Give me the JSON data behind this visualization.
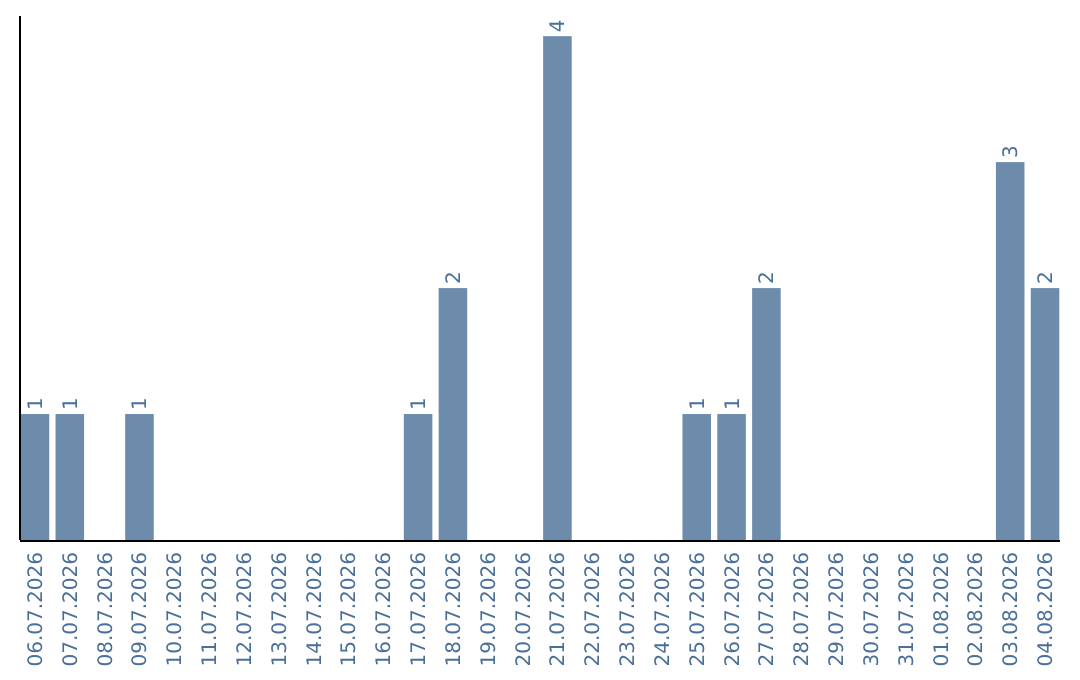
{
  "chart_data": {
    "type": "bar",
    "categories": [
      "06.07.2026",
      "07.07.2026",
      "08.07.2026",
      "09.07.2026",
      "10.07.2026",
      "11.07.2026",
      "12.07.2026",
      "13.07.2026",
      "14.07.2026",
      "15.07.2026",
      "16.07.2026",
      "17.07.2026",
      "18.07.2026",
      "19.07.2026",
      "20.07.2026",
      "21.07.2026",
      "22.07.2026",
      "23.07.2026",
      "24.07.2026",
      "25.07.2026",
      "26.07.2026",
      "27.07.2026",
      "28.07.2026",
      "29.07.2026",
      "30.07.2026",
      "31.07.2026",
      "01.08.2026",
      "02.08.2026",
      "03.08.2026",
      "04.08.2026"
    ],
    "values": [
      1,
      1,
      0,
      1,
      0,
      0,
      0,
      0,
      0,
      0,
      0,
      1,
      2,
      0,
      0,
      4,
      0,
      0,
      0,
      1,
      1,
      2,
      0,
      0,
      0,
      0,
      0,
      0,
      3,
      2
    ],
    "value_labels": [
      "1",
      "1",
      null,
      "1",
      null,
      null,
      null,
      null,
      null,
      null,
      null,
      "1",
      "2",
      null,
      null,
      "4",
      null,
      null,
      null,
      "1",
      "1",
      "2",
      null,
      null,
      null,
      null,
      null,
      null,
      "3",
      "2"
    ],
    "color": "#6d8cab"
  }
}
